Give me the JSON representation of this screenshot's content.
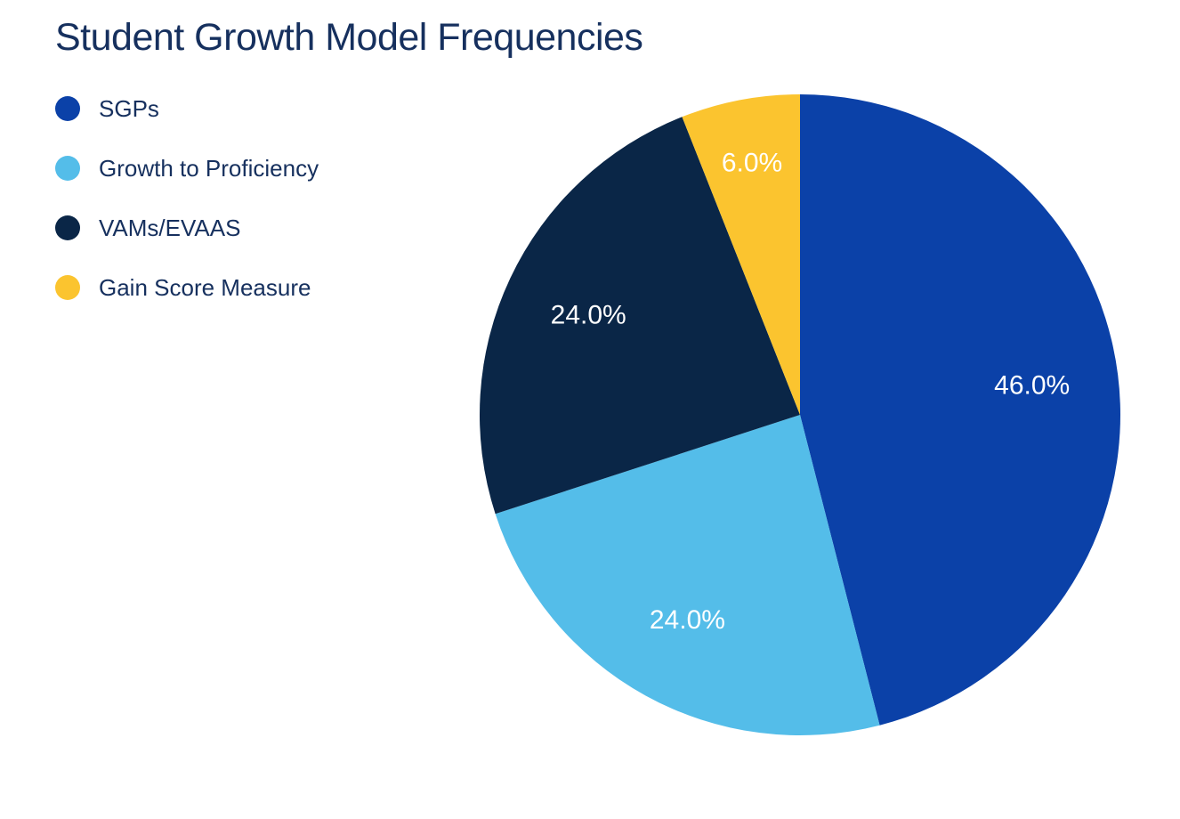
{
  "title": "Student Growth Model Frequencies",
  "colors": {
    "background": "#FFFFFF",
    "title_text": "#16305E",
    "legend_text": "#16305E",
    "slice_label_text": "#FFFFFF"
  },
  "legend": {
    "position": "top-left",
    "items": [
      {
        "label": "SGPs",
        "color": "#0B41A8"
      },
      {
        "label": "Growth to Proficiency",
        "color": "#54BDE9"
      },
      {
        "label": "VAMs/EVAAS",
        "color": "#0A2647"
      },
      {
        "label": "Gain Score Measure",
        "color": "#FBC42F"
      }
    ]
  },
  "chart_data": {
    "type": "pie",
    "title": "Student Growth Model Frequencies",
    "categories": [
      "SGPs",
      "Growth to Proficiency",
      "VAMs/EVAAS",
      "Gain Score Measure"
    ],
    "values": [
      46.0,
      24.0,
      24.0,
      6.0
    ],
    "slice_labels": [
      "46.0%",
      "24.0%",
      "24.0%",
      "6.0%"
    ],
    "colors": [
      "#0B41A8",
      "#54BDE9",
      "#0A2647",
      "#FBC42F"
    ],
    "unit": "percent",
    "start_angle_deg_from_top": 0,
    "direction": "clockwise",
    "legend_position": "left",
    "grid": false
  }
}
